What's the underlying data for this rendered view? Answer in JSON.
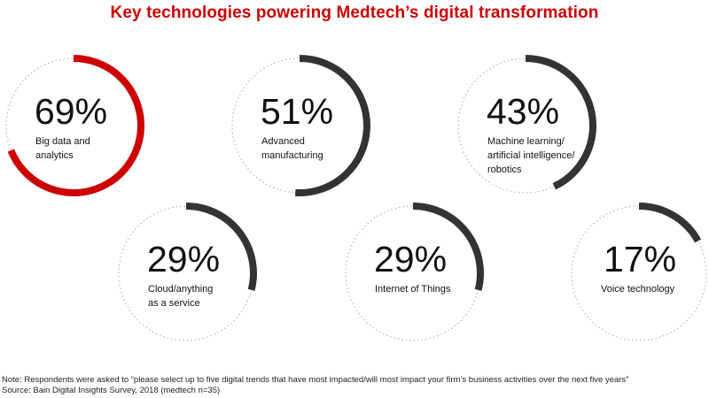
{
  "colors": {
    "highlight": "#cc0000",
    "ring": "#333333",
    "track": "#b3b3b3",
    "title": "#cc0000"
  },
  "chart_data": {
    "type": "pie",
    "title": "Key technologies powering Medtech’s digital transformation",
    "unit": "%",
    "categories": [
      "Big data and\nanalytics",
      "Advanced\nmanufacturing",
      "Machine learning/\nartificial intelligence/\nrobotics",
      "Cloud/anything\nas a service",
      "Internet of Things",
      "Voice technology"
    ],
    "values": [
      69,
      51,
      43,
      29,
      29,
      17
    ],
    "value_labels": [
      "69%",
      "51%",
      "43%",
      "29%",
      "29%",
      "17%"
    ],
    "highlighted": "Big data and\nanalytics"
  },
  "footer": {
    "note": "Note: Respondents were asked to “please select up to five digital trends that have most impacted/will most impact your firm’s business activities over the next five years”",
    "source": "Source: Bain Digital Insights Survey, 2018 (medtech n=35)"
  }
}
